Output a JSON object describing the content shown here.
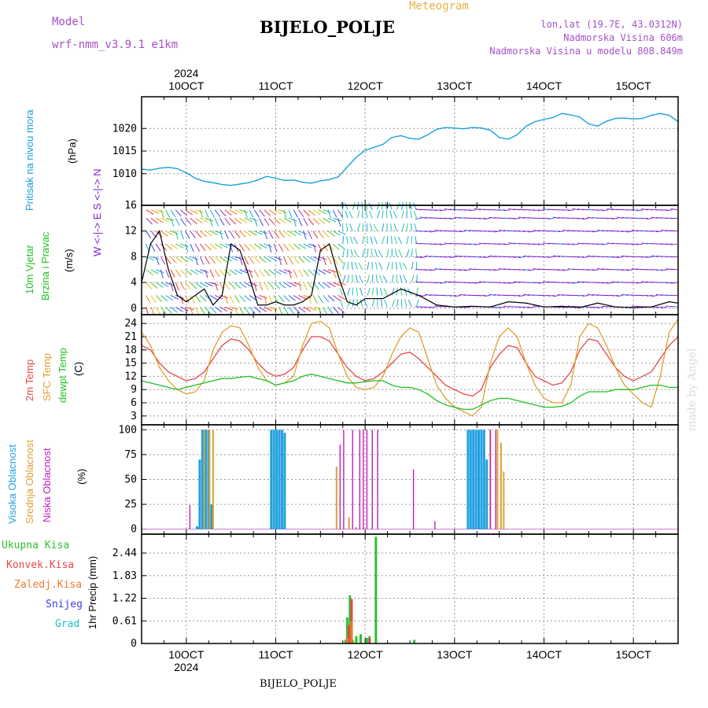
{
  "header": {
    "model_label": "Model",
    "model_name": "wrf-nmm_v3.9.1 e1km",
    "title": "Meteogram",
    "station": "BIJELO_POLJE",
    "lonlat": "lon,lat (19.7E, 43.0312N)",
    "altitude": "Nadmorska Visina 606m",
    "model_altitude": "Nadmorska Visina u modelu 808.849m"
  },
  "footer": {
    "station": "BIJELO_POLJE",
    "watermark": "made by Angel"
  },
  "colors": {
    "pressure": "#1aa0e0",
    "temp": "#e84848",
    "sfc_temp": "#e0a030",
    "dewpt": "#20c020",
    "high_cloud": "#20a0e0",
    "mid_cloud": "#e0a030",
    "low_cloud": "#c020c0",
    "total_precip": "#30c030",
    "conv_precip": "#e84848",
    "frozen_precip": "#f07830",
    "snow": "#4040e0",
    "grad": "#20c0c0",
    "wind_arrows": "#8020d0"
  },
  "time_axis": {
    "year": "2024",
    "ticks": [
      "10OCT",
      "11OCT",
      "12OCT",
      "13OCT",
      "14OCT",
      "15OCT"
    ]
  },
  "chart_data": [
    {
      "type": "line",
      "panel": "pressure",
      "ylabel_lines": [
        "Pritisak na nivou mora",
        "(hPa)"
      ],
      "yticks": [
        1010,
        1015,
        1020
      ],
      "ylim": [
        1003,
        1027
      ],
      "x_days": [
        9.5,
        9.6,
        9.7,
        9.8,
        9.9,
        10.0,
        10.1,
        10.2,
        10.3,
        10.4,
        10.5,
        10.6,
        10.7,
        10.8,
        10.9,
        11.0,
        11.1,
        11.2,
        11.3,
        11.4,
        11.5,
        11.6,
        11.7,
        11.8,
        11.9,
        12.0,
        12.1,
        12.2,
        12.3,
        12.4,
        12.5,
        12.6,
        12.7,
        12.8,
        12.9,
        13.0,
        13.1,
        13.2,
        13.3,
        13.4,
        13.5,
        13.6,
        13.7,
        13.8,
        13.9,
        14.0,
        14.1,
        14.2,
        14.3,
        14.4,
        14.5,
        14.6,
        14.7,
        14.8,
        14.9,
        15.0,
        15.1,
        15.2,
        15.3,
        15.4,
        15.5
      ],
      "series": [
        {
          "values": [
            1011,
            1010.8,
            1011.2,
            1011.4,
            1011.1,
            1010.2,
            1009.0,
            1008.3,
            1008.0,
            1007.6,
            1007.4,
            1007.7,
            1008.0,
            1008.6,
            1009.4,
            1009.0,
            1008.5,
            1008.6,
            1008.1,
            1007.9,
            1008.4,
            1008.7,
            1009.3,
            1011.5,
            1013.6,
            1015.2,
            1015.8,
            1016.5,
            1018.0,
            1018.4,
            1017.8,
            1017.6,
            1018.6,
            1019.8,
            1020.2,
            1020.1,
            1019.9,
            1020.2,
            1020.1,
            1019.6,
            1018.0,
            1017.6,
            1018.6,
            1020.5,
            1021.5,
            1022.0,
            1022.4,
            1023.3,
            1023.0,
            1022.5,
            1021.0,
            1020.5,
            1021.6,
            1022.2,
            1022.3,
            1022.1,
            1022.2,
            1022.9,
            1023.3,
            1022.9,
            1021.5
          ]
        }
      ]
    },
    {
      "type": "line",
      "panel": "wind",
      "ylabel_lines": [
        "10m Vjetar",
        "Brzina i Pravac",
        "(m/s)"
      ],
      "compass": "W <-|-> E  S <-|-> N",
      "yticks": [
        0,
        4,
        8,
        12,
        16
      ],
      "ylim": [
        -1,
        16
      ],
      "x_days": [
        9.5,
        9.6,
        9.7,
        9.8,
        9.9,
        10.0,
        10.1,
        10.2,
        10.3,
        10.4,
        10.5,
        10.6,
        10.7,
        10.8,
        10.9,
        11.0,
        11.1,
        11.2,
        11.3,
        11.4,
        11.5,
        11.6,
        11.7,
        11.8,
        11.9,
        12.0,
        12.2,
        12.4,
        12.6,
        12.8,
        13.0,
        13.2,
        13.4,
        13.6,
        13.8,
        14.0,
        14.2,
        14.4,
        14.6,
        14.8,
        15.0,
        15.2,
        15.4,
        15.5
      ],
      "series": [
        {
          "name": "speed",
          "values": [
            4,
            10,
            12,
            6,
            2,
            1,
            2,
            3,
            0.5,
            2,
            10,
            9,
            5,
            0.5,
            0.5,
            1,
            0.5,
            0.5,
            1,
            2,
            9,
            10,
            5,
            1,
            0.5,
            1.5,
            1.5,
            3,
            2,
            0.5,
            0.2,
            0.3,
            0.2,
            1,
            0.8,
            0.2,
            0.3,
            0.1,
            0.8,
            0.2,
            0.1,
            0.2,
            1,
            0.8
          ]
        }
      ]
    },
    {
      "type": "line",
      "panel": "temperature",
      "ylabel_lines": [
        "2m Temp",
        "SFC Temp",
        "dewpt Temp",
        "(C)"
      ],
      "yticks": [
        3,
        6,
        9,
        12,
        15,
        18,
        21,
        24
      ],
      "ylim": [
        1,
        26
      ],
      "x_days": [
        9.5,
        9.6,
        9.7,
        9.8,
        9.9,
        10.0,
        10.1,
        10.2,
        10.3,
        10.4,
        10.5,
        10.6,
        10.7,
        10.8,
        10.9,
        11.0,
        11.1,
        11.2,
        11.3,
        11.4,
        11.5,
        11.6,
        11.7,
        11.8,
        11.9,
        12.0,
        12.1,
        12.2,
        12.3,
        12.4,
        12.5,
        12.6,
        12.7,
        12.8,
        12.9,
        13.0,
        13.1,
        13.2,
        13.3,
        13.4,
        13.5,
        13.6,
        13.7,
        13.8,
        13.9,
        14.0,
        14.1,
        14.2,
        14.3,
        14.4,
        14.5,
        14.6,
        14.7,
        14.8,
        14.9,
        15.0,
        15.1,
        15.2,
        15.3,
        15.4,
        15.5
      ],
      "series": [
        {
          "name": "2m Temp",
          "values": [
            19,
            18,
            15,
            13,
            12,
            11,
            11.5,
            13,
            16,
            19,
            20.5,
            20,
            18,
            15,
            13,
            12,
            12.5,
            14,
            18,
            21,
            21,
            20,
            17,
            14,
            12,
            11,
            11.5,
            13,
            15,
            17,
            17.5,
            16,
            14,
            12,
            10,
            9,
            8,
            7.5,
            9,
            14,
            17,
            19,
            18.5,
            15,
            12,
            11,
            10,
            10.5,
            13,
            18,
            20.5,
            20,
            17,
            14,
            12,
            11,
            12,
            13,
            16,
            19,
            21
          ]
        },
        {
          "name": "SFC Temp",
          "values": [
            22,
            19,
            14,
            11,
            9,
            8,
            8.5,
            11,
            18,
            22,
            23.5,
            23,
            19,
            14,
            11,
            10,
            10.5,
            12,
            19,
            24,
            24.5,
            23,
            17,
            12,
            9.5,
            9,
            9.5,
            12,
            17,
            21,
            23,
            22,
            16,
            10,
            7,
            5,
            4,
            3,
            5,
            15,
            21,
            23,
            21,
            15,
            10,
            7,
            6,
            6,
            10,
            21,
            24,
            23,
            19,
            14,
            10,
            8,
            6,
            5,
            12,
            22,
            25
          ]
        },
        {
          "name": "dewpt Temp",
          "values": [
            11,
            10.5,
            10,
            9.5,
            9,
            9.5,
            10,
            10.5,
            11,
            11.5,
            11.5,
            11.8,
            12,
            11.5,
            11,
            10,
            10.5,
            11,
            12,
            12.5,
            12,
            11.5,
            11,
            10.5,
            10.5,
            10.8,
            11,
            11,
            10,
            9.5,
            9.5,
            9,
            8,
            6.5,
            5.5,
            5,
            4.5,
            4.5,
            5.5,
            6.5,
            7,
            7,
            6.5,
            6,
            5.5,
            5,
            5,
            5.2,
            6,
            7.5,
            8.5,
            8.5,
            8.5,
            9,
            9,
            9,
            9.5,
            10,
            10,
            9.5,
            9.5
          ]
        }
      ]
    },
    {
      "type": "bar",
      "panel": "clouds",
      "ylabel_lines": [
        "Visoka Oblacnost",
        "Srednja Oblacnost",
        "Niska Oblacnost",
        "(%)"
      ],
      "yticks": [
        0,
        25,
        50,
        75,
        100
      ],
      "ylim": [
        -5,
        105
      ],
      "series": [
        {
          "name": "Visoka Oblacnost",
          "x_days": [
            10.12,
            10.15,
            10.18,
            10.22,
            10.25,
            10.28,
            10.95,
            10.98,
            11.01,
            11.04,
            11.07,
            11.1,
            13.15,
            13.18,
            13.21,
            13.24,
            13.27,
            13.3,
            13.33,
            13.36
          ],
          "values": [
            3,
            70,
            100,
            100,
            100,
            25,
            100,
            100,
            100,
            100,
            100,
            97,
            100,
            100,
            100,
            100,
            100,
            100,
            100,
            70
          ]
        },
        {
          "name": "Srednja Oblacnost",
          "x_days": [
            10.2,
            10.26,
            10.3,
            11.68,
            11.82,
            13.4,
            13.48,
            13.52,
            13.55
          ],
          "values": [
            100,
            100,
            100,
            63,
            12,
            100,
            100,
            87,
            58
          ]
        },
        {
          "name": "Niska Oblacnost",
          "x_days": [
            10.04,
            11.72,
            11.76,
            11.86,
            11.9,
            11.94,
            11.98,
            12.02,
            12.08,
            12.14,
            12.54,
            12.78,
            13.4,
            13.46
          ],
          "values": [
            24,
            85,
            100,
            100,
            2,
            100,
            100,
            100,
            100,
            100,
            60,
            8,
            100,
            100
          ]
        }
      ]
    },
    {
      "type": "bar",
      "panel": "precipitation",
      "ylabel_lines": [
        "1hr Precip (mm)"
      ],
      "legend": [
        "Ukupna Kisa",
        "Konvek.Kisa",
        "Zaledj.Kisa",
        "Snijeg",
        "Grad"
      ],
      "yticks": [
        0,
        0.61,
        1.22,
        1.83,
        2.44
      ],
      "ylim": [
        0,
        2.95
      ],
      "series": [
        {
          "name": "Ukupna Kisa",
          "x_days": [
            11.78,
            11.8,
            11.83,
            11.86,
            11.9,
            11.95,
            12.02,
            12.05,
            12.12,
            12.55
          ],
          "values": [
            0.1,
            0.7,
            1.3,
            0.1,
            0.2,
            0.25,
            0.15,
            0.2,
            2.88,
            0.1
          ]
        },
        {
          "name": "Konvek.Kisa",
          "x_days": [
            11.81,
            11.84,
            12.04
          ],
          "values": [
            0.5,
            1.2,
            0.15
          ]
        },
        {
          "name": "Zaledj.Kisa",
          "x_days": [
            11.78,
            11.83
          ],
          "values": [
            0.15,
            0.6
          ]
        }
      ]
    }
  ]
}
